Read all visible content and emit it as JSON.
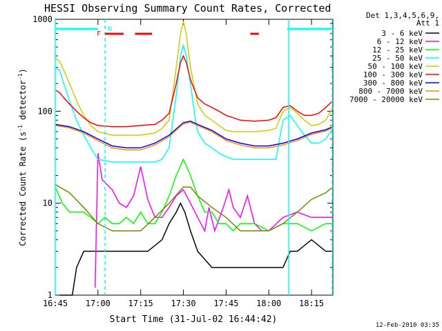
{
  "chart_data": {
    "type": "line",
    "title": "HESSI Observing Summary Count Rates, Corrected",
    "xlabel": "Start Time (31-Jul-02 16:44:42)",
    "ylabel_main": "Corrected Count Rate (s",
    "ylabel_sup1": "-1",
    "ylabel_mid": " detector",
    "ylabel_sup2": "-1",
    "ylabel_end": ")",
    "ylog": true,
    "ylim": [
      1,
      1000
    ],
    "xlim_min": [
      0,
      158
    ],
    "x_ticks": [
      {
        "t": 0,
        "label": "16:45"
      },
      {
        "t": 30,
        "label": "17:00"
      },
      {
        "t": 60,
        "label": "17:15"
      },
      {
        "t": 90,
        "label": "17:30"
      },
      {
        "t": 120,
        "label": "17:45"
      },
      {
        "t": 150,
        "label": "18:00"
      },
      {
        "t": 180,
        "label": "18:15"
      }
    ],
    "y_ticks": [
      {
        "v": 1,
        "label": "1"
      },
      {
        "v": 10,
        "label": "10"
      },
      {
        "v": 100,
        "label": "100"
      },
      {
        "v": 1000,
        "label": "1000"
      }
    ],
    "legend_header": [
      "Det 1,3,4,5,6,9,",
      "Att 1"
    ],
    "legend_placement": "right",
    "series": [
      {
        "name": "3 - 6 keV",
        "color": "#000000",
        "points": [
          [
            3,
            1
          ],
          [
            8,
            1
          ],
          [
            12,
            1
          ],
          [
            15,
            2
          ],
          [
            20,
            3
          ],
          [
            28,
            3
          ],
          [
            35,
            3
          ],
          [
            45,
            3
          ],
          [
            55,
            3
          ],
          [
            65,
            3
          ],
          [
            75,
            4
          ],
          [
            80,
            6
          ],
          [
            85,
            8
          ],
          [
            88,
            10
          ],
          [
            91,
            8
          ],
          [
            95,
            5
          ],
          [
            100,
            3
          ],
          [
            110,
            2
          ],
          [
            115,
            2
          ],
          [
            120,
            2
          ],
          [
            130,
            2
          ],
          [
            140,
            2
          ],
          [
            150,
            2
          ],
          [
            160,
            2
          ],
          [
            165,
            3
          ],
          [
            170,
            3
          ],
          [
            180,
            4
          ],
          [
            190,
            3
          ],
          [
            195,
            3
          ]
        ]
      },
      {
        "name": "6 - 12 keV",
        "color": "#ff00ff",
        "points": [
          [
            28,
            1.2
          ],
          [
            30,
            35
          ],
          [
            33,
            18
          ],
          [
            40,
            14
          ],
          [
            45,
            10
          ],
          [
            50,
            9
          ],
          [
            55,
            12
          ],
          [
            60,
            25
          ],
          [
            65,
            11
          ],
          [
            70,
            7
          ],
          [
            75,
            7
          ],
          [
            80,
            9
          ],
          [
            85,
            12
          ],
          [
            90,
            14
          ],
          [
            95,
            10
          ],
          [
            100,
            7
          ],
          [
            105,
            5
          ],
          [
            108,
            9
          ],
          [
            112,
            5
          ],
          [
            118,
            9
          ],
          [
            122,
            14
          ],
          [
            125,
            9
          ],
          [
            130,
            7
          ],
          [
            135,
            12
          ],
          [
            140,
            6
          ],
          [
            145,
            5
          ],
          [
            150,
            5
          ],
          [
            160,
            7
          ],
          [
            170,
            8
          ],
          [
            180,
            7
          ],
          [
            190,
            7
          ],
          [
            195,
            7
          ]
        ]
      },
      {
        "name": "12 - 25 keV",
        "color": "#00ff00",
        "points": [
          [
            0,
            15
          ],
          [
            5,
            10
          ],
          [
            10,
            8
          ],
          [
            15,
            8
          ],
          [
            20,
            8
          ],
          [
            25,
            7
          ],
          [
            30,
            6
          ],
          [
            35,
            7
          ],
          [
            40,
            6
          ],
          [
            45,
            6
          ],
          [
            50,
            7
          ],
          [
            55,
            6
          ],
          [
            60,
            8
          ],
          [
            65,
            6
          ],
          [
            70,
            6
          ],
          [
            75,
            8
          ],
          [
            80,
            12
          ],
          [
            85,
            20
          ],
          [
            90,
            30
          ],
          [
            95,
            20
          ],
          [
            100,
            12
          ],
          [
            105,
            8
          ],
          [
            110,
            8
          ],
          [
            115,
            6
          ],
          [
            120,
            6
          ],
          [
            125,
            5
          ],
          [
            130,
            6
          ],
          [
            140,
            6
          ],
          [
            150,
            5
          ],
          [
            160,
            6
          ],
          [
            170,
            6
          ],
          [
            180,
            5
          ],
          [
            190,
            6
          ],
          [
            195,
            6
          ]
        ]
      },
      {
        "name": "25 - 50 keV",
        "color": "#00ffff",
        "points": [
          [
            0,
            300
          ],
          [
            3,
            280
          ],
          [
            6,
            200
          ],
          [
            10,
            130
          ],
          [
            15,
            80
          ],
          [
            20,
            55
          ],
          [
            25,
            40
          ],
          [
            30,
            30
          ],
          [
            40,
            28
          ],
          [
            50,
            28
          ],
          [
            60,
            28
          ],
          [
            70,
            28
          ],
          [
            75,
            30
          ],
          [
            80,
            40
          ],
          [
            85,
            150
          ],
          [
            88,
            400
          ],
          [
            90,
            520
          ],
          [
            92,
            400
          ],
          [
            95,
            200
          ],
          [
            98,
            90
          ],
          [
            100,
            60
          ],
          [
            105,
            45
          ],
          [
            110,
            40
          ],
          [
            115,
            35
          ],
          [
            120,
            32
          ],
          [
            125,
            30
          ],
          [
            130,
            30
          ],
          [
            135,
            30
          ],
          [
            140,
            30
          ],
          [
            150,
            30
          ],
          [
            155,
            30
          ],
          [
            160,
            80
          ],
          [
            165,
            90
          ],
          [
            170,
            70
          ],
          [
            175,
            55
          ],
          [
            180,
            45
          ],
          [
            185,
            45
          ],
          [
            190,
            50
          ],
          [
            195,
            65
          ]
        ]
      },
      {
        "name": "50 - 100 keV",
        "color": "#cccc00",
        "points": [
          [
            0,
            380
          ],
          [
            3,
            350
          ],
          [
            6,
            280
          ],
          [
            10,
            200
          ],
          [
            15,
            130
          ],
          [
            20,
            90
          ],
          [
            25,
            70
          ],
          [
            30,
            60
          ],
          [
            40,
            55
          ],
          [
            50,
            55
          ],
          [
            60,
            55
          ],
          [
            70,
            58
          ],
          [
            75,
            65
          ],
          [
            80,
            80
          ],
          [
            85,
            300
          ],
          [
            88,
            700
          ],
          [
            90,
            950
          ],
          [
            92,
            700
          ],
          [
            95,
            300
          ],
          [
            100,
            120
          ],
          [
            105,
            90
          ],
          [
            110,
            80
          ],
          [
            115,
            70
          ],
          [
            120,
            62
          ],
          [
            125,
            60
          ],
          [
            130,
            60
          ],
          [
            140,
            60
          ],
          [
            150,
            62
          ],
          [
            155,
            65
          ],
          [
            160,
            100
          ],
          [
            165,
            110
          ],
          [
            170,
            95
          ],
          [
            175,
            80
          ],
          [
            180,
            70
          ],
          [
            185,
            72
          ],
          [
            190,
            80
          ],
          [
            195,
            110
          ]
        ]
      },
      {
        "name": "100 - 300 keV",
        "color": "#ff0000",
        "points": [
          [
            0,
            170
          ],
          [
            3,
            160
          ],
          [
            6,
            140
          ],
          [
            10,
            120
          ],
          [
            15,
            100
          ],
          [
            20,
            85
          ],
          [
            25,
            75
          ],
          [
            30,
            70
          ],
          [
            40,
            68
          ],
          [
            50,
            68
          ],
          [
            60,
            70
          ],
          [
            70,
            72
          ],
          [
            75,
            80
          ],
          [
            80,
            95
          ],
          [
            85,
            200
          ],
          [
            88,
            340
          ],
          [
            90,
            400
          ],
          [
            92,
            340
          ],
          [
            95,
            220
          ],
          [
            100,
            140
          ],
          [
            105,
            120
          ],
          [
            110,
            110
          ],
          [
            115,
            100
          ],
          [
            120,
            90
          ],
          [
            125,
            85
          ],
          [
            130,
            80
          ],
          [
            140,
            78
          ],
          [
            150,
            80
          ],
          [
            155,
            85
          ],
          [
            160,
            110
          ],
          [
            165,
            115
          ],
          [
            170,
            100
          ],
          [
            175,
            90
          ],
          [
            180,
            90
          ],
          [
            185,
            95
          ],
          [
            190,
            110
          ],
          [
            195,
            130
          ]
        ]
      },
      {
        "name": "300 - 800 keV",
        "color": "#0000ff",
        "points": [
          [
            0,
            72
          ],
          [
            10,
            68
          ],
          [
            20,
            60
          ],
          [
            30,
            50
          ],
          [
            40,
            42
          ],
          [
            50,
            40
          ],
          [
            60,
            40
          ],
          [
            70,
            45
          ],
          [
            80,
            55
          ],
          [
            90,
            75
          ],
          [
            95,
            78
          ],
          [
            100,
            72
          ],
          [
            110,
            62
          ],
          [
            120,
            50
          ],
          [
            130,
            45
          ],
          [
            140,
            42
          ],
          [
            150,
            42
          ],
          [
            160,
            45
          ],
          [
            170,
            50
          ],
          [
            180,
            58
          ],
          [
            190,
            63
          ],
          [
            195,
            68
          ]
        ]
      },
      {
        "name": "800 - 7000 keV",
        "color": "#ff8800",
        "points": [
          [
            0,
            70
          ],
          [
            10,
            66
          ],
          [
            20,
            58
          ],
          [
            30,
            48
          ],
          [
            40,
            40
          ],
          [
            50,
            38
          ],
          [
            60,
            38
          ],
          [
            70,
            43
          ],
          [
            80,
            53
          ],
          [
            90,
            73
          ],
          [
            95,
            76
          ],
          [
            100,
            70
          ],
          [
            110,
            60
          ],
          [
            120,
            48
          ],
          [
            130,
            43
          ],
          [
            140,
            40
          ],
          [
            150,
            40
          ],
          [
            160,
            43
          ],
          [
            170,
            48
          ],
          [
            180,
            56
          ],
          [
            190,
            61
          ],
          [
            195,
            66
          ]
        ]
      },
      {
        "name": "7000 - 20000 keV",
        "color": "#808000",
        "points": [
          [
            0,
            16
          ],
          [
            10,
            13
          ],
          [
            20,
            9
          ],
          [
            30,
            6
          ],
          [
            40,
            5
          ],
          [
            50,
            5
          ],
          [
            60,
            5
          ],
          [
            70,
            7
          ],
          [
            80,
            10
          ],
          [
            90,
            15
          ],
          [
            95,
            15
          ],
          [
            100,
            12
          ],
          [
            110,
            9
          ],
          [
            120,
            7
          ],
          [
            130,
            5
          ],
          [
            140,
            5
          ],
          [
            150,
            5
          ],
          [
            160,
            6
          ],
          [
            170,
            8
          ],
          [
            180,
            11
          ],
          [
            190,
            13
          ],
          [
            195,
            15
          ]
        ]
      }
    ],
    "cyan_vlines": [
      0,
      35,
      164,
      195
    ],
    "segments_cyan": [
      [
        0,
        30
      ],
      [
        163,
        195
      ]
    ],
    "segments_red": [
      [
        35,
        48
      ],
      [
        56,
        68
      ],
      [
        137,
        143
      ]
    ],
    "marker_F": "F",
    "marker_N": "N",
    "footer_date": "12-Feb-2010 03:35"
  }
}
